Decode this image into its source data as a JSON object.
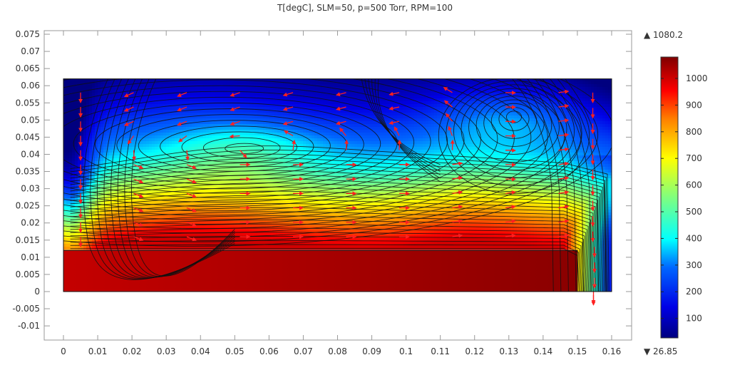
{
  "chart_data": {
    "type": "heatmap",
    "title": "T[degC],  SLM=50, p=500 Torr, RPM=100",
    "xlabel": "",
    "ylabel": "",
    "xlim": [
      -0.0055,
      0.166
    ],
    "ylim": [
      -0.014,
      0.076
    ],
    "x_ticks": [
      0,
      0.01,
      0.02,
      0.03,
      0.04,
      0.05,
      0.06,
      0.07,
      0.08,
      0.09,
      0.1,
      0.11,
      0.12,
      0.13,
      0.14,
      0.15,
      0.16
    ],
    "x_tick_labels": [
      "0",
      "0.01",
      "0.02",
      "0.03",
      "0.04",
      "0.05",
      "0.06",
      "0.07",
      "0.08",
      "0.09",
      "0.1",
      "0.11",
      "0.12",
      "0.13",
      "0.14",
      "0.15",
      "0.16"
    ],
    "y_ticks": [
      0.075,
      0.07,
      0.065,
      0.06,
      0.055,
      0.05,
      0.045,
      0.04,
      0.035,
      0.03,
      0.025,
      0.02,
      0.015,
      0.01,
      0.005,
      0,
      -0.005,
      -0.01
    ],
    "y_tick_labels": [
      "0.075",
      "0.07",
      "0.065",
      "0.06",
      "0.055",
      "0.05",
      "0.045",
      "0.04",
      "0.035",
      "0.03",
      "0.025",
      "0.02",
      "0.015",
      "0.01",
      "0.005",
      "0",
      "-0.005",
      "-0.01"
    ],
    "grid": false,
    "field": "Temperature (degC)",
    "colormap": "rainbow/jet",
    "color_range": {
      "min": 26.85,
      "max": 1080.2
    },
    "colorbar": {
      "ticks": [
        1000,
        900,
        800,
        700,
        600,
        500,
        400,
        300,
        200,
        100
      ],
      "max_label": "▲ 1080.2",
      "min_label": "▼ 26.85",
      "position": "right"
    },
    "geometry": {
      "domain": {
        "x0": 0,
        "x1": 0.16,
        "y0": 0,
        "y1": 0.062
      },
      "heated_block": {
        "x0": 0,
        "x1": 0.15,
        "y0": 0,
        "y1": 0.012,
        "temperature": 1060
      },
      "outlet_gap": {
        "x0": 0.15,
        "x1": 0.16,
        "y": 0
      }
    },
    "temperature_profile": {
      "description": "Approx. temperature vs height above block (mid-domain)",
      "y": [
        0.012,
        0.015,
        0.02,
        0.025,
        0.03,
        0.035,
        0.04,
        0.045,
        0.05,
        0.055,
        0.062
      ],
      "T": [
        1000,
        940,
        830,
        700,
        560,
        420,
        330,
        260,
        180,
        110,
        40
      ]
    },
    "vortices": [
      {
        "name": "primary-left-vortex",
        "x": 0.0535,
        "y": 0.0415,
        "rotation": "counter-clockwise"
      },
      {
        "name": "secondary-right-vortex",
        "x": 0.1315,
        "y": 0.0515,
        "rotation": "clockwise"
      }
    ],
    "saddle_point": {
      "x": 0.09,
      "y": 0.041
    },
    "outflow": {
      "x": 0.155,
      "y": -0.004,
      "direction": "down"
    },
    "overlays": [
      "black streamlines",
      "red velocity arrows"
    ]
  }
}
